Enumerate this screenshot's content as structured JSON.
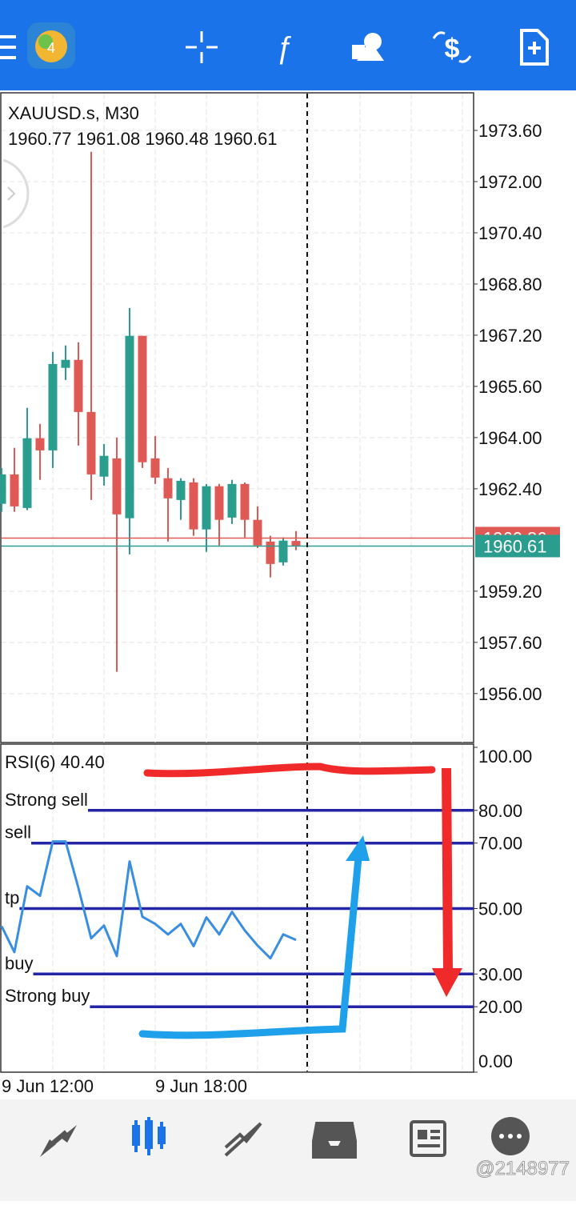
{
  "chart_data": [
    {
      "type": "candlestick",
      "title": "XAUUSD.s, M30",
      "categories": [
        "9 Jun 12:00",
        null,
        null,
        null,
        null,
        null,
        null,
        null,
        null,
        null,
        null,
        null,
        "9 Jun 18:00",
        null,
        null,
        null,
        null,
        null,
        null,
        null,
        null,
        null,
        null,
        null
      ],
      "open": [
        1961.93,
        1962.85,
        1961.8,
        1963.98,
        1963.6,
        1966.18,
        1966.43,
        1964.8,
        1962.78,
        1963.35,
        1961.48,
        1967.18,
        1963.35,
        1962.73,
        1962.05,
        1962.6,
        1961.13,
        1962.48,
        1961.5,
        1962.55,
        1961.43,
        1960.75,
        1960.1,
        1960.77
      ],
      "high": [
        1963.05,
        1963.68,
        1964.93,
        1964.43,
        1966.68,
        1966.88,
        1966.98,
        1972.93,
        1963.8,
        1964.0,
        1968.05,
        1967.18,
        1964.05,
        1963.05,
        1962.73,
        1962.73,
        1962.55,
        1962.55,
        1962.68,
        1962.6,
        1961.85,
        1960.93,
        1960.88,
        1961.08
      ],
      "low": [
        1961.68,
        1961.68,
        1961.73,
        1962.68,
        1963.05,
        1965.8,
        1963.75,
        1962.05,
        1962.5,
        1956.68,
        1960.35,
        1963.05,
        1962.55,
        1960.75,
        1961.43,
        1960.93,
        1960.43,
        1960.63,
        1961.3,
        1960.88,
        1960.55,
        1959.63,
        1960.0,
        1960.48
      ],
      "close": [
        1962.85,
        1961.85,
        1963.98,
        1963.6,
        1966.3,
        1966.43,
        1964.8,
        1962.85,
        1963.43,
        1961.6,
        1967.18,
        1963.23,
        1962.75,
        1962.1,
        1962.65,
        1961.13,
        1962.48,
        1961.43,
        1962.55,
        1961.43,
        1960.63,
        1960.05,
        1960.78,
        1960.61
      ],
      "up_color": "#2a9d8f",
      "down_color": "#e05a55",
      "ylim": [
        1954.47,
        1974.75
      ],
      "yticks": [
        {
          "value": 1973.6,
          "label": "1973.60"
        },
        {
          "value": 1972,
          "label": "1972.00"
        },
        {
          "value": 1970.4,
          "label": "1970.40"
        },
        {
          "value": 1968.8,
          "label": "1968.80"
        },
        {
          "value": 1967.2,
          "label": "1967.20"
        },
        {
          "value": 1965.6,
          "label": "1965.60"
        },
        {
          "value": 1964,
          "label": "1964.00"
        },
        {
          "value": 1962.4,
          "label": "1962.40"
        },
        {
          "value": 1959.2,
          "label": "1959.20"
        },
        {
          "value": 1957.6,
          "label": "1957.60"
        },
        {
          "value": 1956,
          "label": "1956.00"
        }
      ],
      "price_lines": [
        {
          "value": 1960.86,
          "color": "#e05a55"
        },
        {
          "value": 1960.61,
          "color": "#2a9d8f"
        }
      ],
      "grid": true
    },
    {
      "type": "line",
      "title": "RSI(6) 40.40",
      "color": "#3a8ee0",
      "values": [
        44.6,
        36.7,
        56.8,
        53.9,
        70.5,
        70.5,
        56.3,
        40.9,
        44.8,
        35.5,
        64.4,
        47.5,
        45.3,
        42.1,
        45.3,
        38.5,
        47.3,
        42.1,
        49.0,
        43.3,
        38.7,
        34.8,
        42.1,
        40.4
      ],
      "levels": [
        {
          "value": 80,
          "label": "Strong sell"
        },
        {
          "value": 70,
          "label": "sell"
        },
        {
          "value": 50,
          "label": "tp"
        },
        {
          "value": 30,
          "label": "buy"
        },
        {
          "value": 20,
          "label": "Strong buy"
        }
      ],
      "level_color": "#2424a6",
      "ylim": [
        0,
        100
      ],
      "yticks": [
        {
          "value": 100,
          "label": "100.00"
        },
        {
          "value": 80,
          "label": "80.00"
        },
        {
          "value": 70,
          "label": "70.00"
        },
        {
          "value": 50,
          "label": "50.00"
        },
        {
          "value": 30,
          "label": "30.00"
        },
        {
          "value": 20,
          "label": "20.00"
        },
        {
          "value": 0,
          "label": "0.00"
        }
      ]
    }
  ],
  "watermark": "@2148977"
}
